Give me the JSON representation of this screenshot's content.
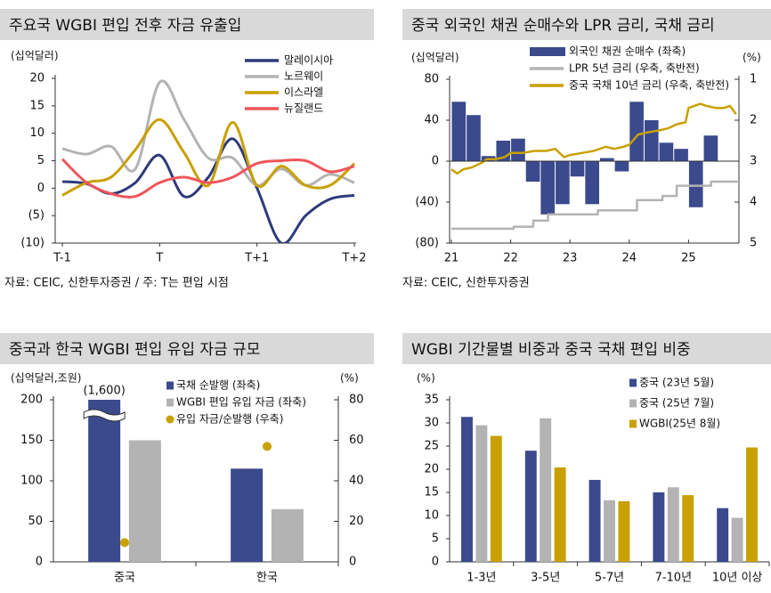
{
  "chart_data": [
    {
      "type": "line",
      "title": "주요국 WGBI 편입 전후 자금 유출입",
      "y_label": "(십억달러)",
      "categories": [
        "T-1",
        null,
        null,
        null,
        "T",
        null,
        null,
        null,
        "T+1",
        null,
        null,
        null,
        "T+2"
      ],
      "series": [
        {
          "name": "말레이시아",
          "color": "#2e3a7a",
          "values": [
            1.2,
            0.8,
            -1,
            1,
            6,
            -1.5,
            2,
            9,
            0,
            -10,
            -5,
            -2,
            -1.3
          ]
        },
        {
          "name": "노르웨이",
          "color": "#b3b3b3",
          "values": [
            7.2,
            6.2,
            7.6,
            3.5,
            19.3,
            12.5,
            5.5,
            5.5,
            0.5,
            3.5,
            0.5,
            2.5,
            1
          ]
        },
        {
          "name": "이스라엘",
          "color": "#c9a000",
          "values": [
            -1.3,
            1,
            2,
            7,
            12.5,
            6.5,
            0.5,
            12,
            0.5,
            4,
            0.5,
            0.5,
            4.5
          ]
        },
        {
          "name": "뉴질랜드",
          "color": "#f0555a",
          "values": [
            5.3,
            1,
            -1,
            -1.5,
            1,
            2,
            1,
            2,
            4.5,
            5,
            5,
            3,
            4
          ]
        }
      ],
      "ylim": [
        -10,
        20
      ],
      "yticks": [
        20,
        15,
        10,
        5,
        0,
        {
          "value": -5,
          "label": "(5)"
        },
        {
          "value": -10,
          "label": "(10)"
        }
      ],
      "legend": "upper right",
      "source": "자료: CEIC, 신한투자증권 / 주: T는 편입 시점"
    },
    {
      "type": "combo",
      "title": "중국 외국인 채권 순매수와 LPR 금리, 국채 금리",
      "y_label": "(십억달러)",
      "y2_label": "(%)",
      "xlim": [
        20.97,
        25.85
      ],
      "xticks": [
        21,
        22,
        23,
        24,
        25
      ],
      "ylim": [
        -80,
        80
      ],
      "yticks": [
        80,
        40,
        0,
        {
          "value": -40,
          "label": "(40)"
        },
        {
          "value": -80,
          "label": "(80)"
        }
      ],
      "y2lim": [
        1,
        5
      ],
      "y2ticks": [
        1,
        2,
        3,
        4,
        5
      ],
      "y2_reversed": true,
      "series": [
        {
          "name": "외국인 채권 순매수 (좌축)",
          "type": "bar",
          "color": "#3a4a8c",
          "x": [
            21.125,
            21.375,
            21.625,
            21.875,
            22.125,
            22.375,
            22.625,
            22.875,
            23.125,
            23.375,
            23.625,
            23.875,
            24.125,
            24.375,
            24.625,
            24.875,
            25.125,
            25.375
          ],
          "values": [
            58,
            45,
            5,
            20,
            22,
            -20,
            -52,
            -42,
            -15,
            -42,
            3,
            -10,
            58,
            40,
            18,
            12,
            -45,
            25
          ]
        },
        {
          "name": "LPR 5년 금리 (우축, 축반전)",
          "type": "line",
          "axis": "y2",
          "color": "#b3b3b3",
          "x": [
            21,
            22.05,
            22.05,
            22.38,
            22.38,
            22.63,
            22.63,
            23.47,
            23.47,
            24.13,
            24.13,
            24.56,
            24.56,
            24.8,
            24.8,
            25.38,
            25.38,
            25.85
          ],
          "values": [
            4.65,
            4.65,
            4.6,
            4.6,
            4.45,
            4.45,
            4.3,
            4.3,
            4.2,
            4.2,
            3.95,
            3.95,
            3.85,
            3.85,
            3.6,
            3.6,
            3.5,
            3.5
          ]
        },
        {
          "name": "중국 국채 10년 금리 (우축, 축반전)",
          "type": "line",
          "axis": "y2",
          "color": "#c9a000",
          "x": [
            21.0,
            21.1,
            21.2,
            21.35,
            21.5,
            21.6,
            21.75,
            21.9,
            22.0,
            22.2,
            22.4,
            22.6,
            22.75,
            22.9,
            23.0,
            23.2,
            23.4,
            23.6,
            23.75,
            23.9,
            24.0,
            24.15,
            24.3,
            24.5,
            24.65,
            24.8,
            24.95,
            25.0,
            25.1,
            25.2,
            25.3,
            25.45,
            25.6,
            25.7,
            25.8
          ],
          "values": [
            3.2,
            3.3,
            3.2,
            3.15,
            3.05,
            2.95,
            2.95,
            2.9,
            2.8,
            2.8,
            2.75,
            2.75,
            2.7,
            2.9,
            2.85,
            2.8,
            2.75,
            2.65,
            2.7,
            2.65,
            2.6,
            2.35,
            2.3,
            2.25,
            2.2,
            2.1,
            2.05,
            1.7,
            1.65,
            1.6,
            1.65,
            1.7,
            1.7,
            1.65,
            1.85
          ]
        }
      ],
      "source": "자료: CEIC, 신한투자증권"
    },
    {
      "type": "bar",
      "title": "중국과 한국 WGBI 편입 유입 자금 규모",
      "y_label": "(십억달러,조원)",
      "y2_label": "(%)",
      "categories": [
        "중국",
        "한국"
      ],
      "ylim": [
        0,
        200
      ],
      "yticks": [
        0,
        50,
        100,
        150,
        200
      ],
      "y2lim": [
        0,
        80
      ],
      "y2ticks": [
        0,
        20,
        40,
        60,
        80
      ],
      "axis_break": true,
      "series": [
        {
          "name": "국채 순발행 (좌축)",
          "color": "#3a4a8c",
          "values": [
            1600,
            115
          ],
          "value_labels": [
            "(1,600)",
            null
          ]
        },
        {
          "name": "WGBI 편입 유입 자금 (좌축)",
          "color": "#b3b3b3",
          "values": [
            150,
            65
          ]
        },
        {
          "name": "유입 자금/순발행 (우축)",
          "type": "scatter",
          "axis": "y2",
          "color": "#c9a000",
          "values": [
            9.5,
            57
          ]
        }
      ]
    },
    {
      "type": "bar",
      "title": "WGBI 기간물별 비중과 중국 국채 편입 비중",
      "y_label": "(%)",
      "categories": [
        "1-3년",
        "3-5년",
        "5-7년",
        "7-10년",
        "10년 이상"
      ],
      "ylim": [
        0,
        35
      ],
      "yticks": [
        0,
        5,
        10,
        15,
        20,
        25,
        30,
        35
      ],
      "series": [
        {
          "name": "중국 (23년 5월)",
          "color": "#3a4a8c",
          "values": [
            31.3,
            24,
            17.7,
            15,
            11.6
          ]
        },
        {
          "name": "중국 (25년 7월)",
          "color": "#b3b3b3",
          "values": [
            29.5,
            31,
            13.3,
            16.1,
            9.5
          ]
        },
        {
          "name": "WGBI(25년 8월)",
          "color": "#c9a000",
          "values": [
            27.2,
            20.4,
            13.1,
            14.4,
            24.7
          ]
        }
      ]
    }
  ]
}
